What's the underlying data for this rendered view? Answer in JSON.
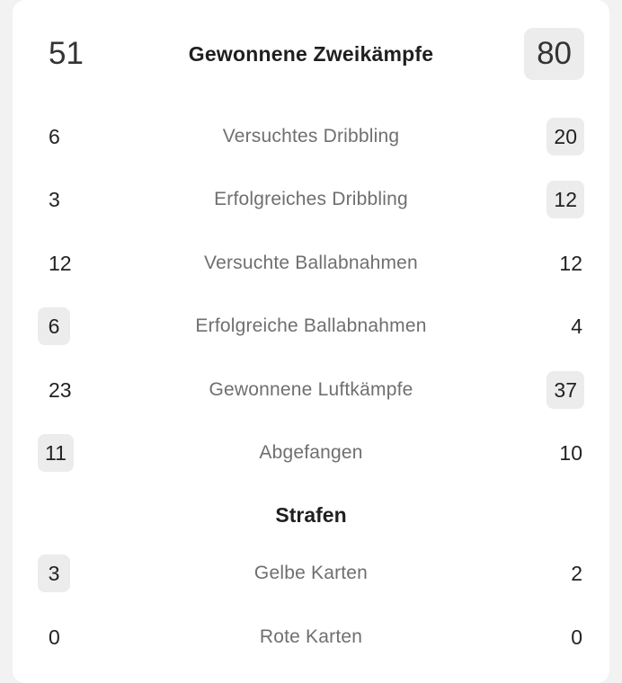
{
  "duels": {
    "header": {
      "label": "Gewonnene Zweikämpfe",
      "home": "51",
      "away": "80"
    },
    "rows": [
      {
        "label": "Versuchtes Dribbling",
        "home": "6",
        "away": "20"
      },
      {
        "label": "Erfolgreiches Dribbling",
        "home": "3",
        "away": "12"
      },
      {
        "label": "Versuchte Ballabnahmen",
        "home": "12",
        "away": "12"
      },
      {
        "label": "Erfolgreiche Ballabnahmen",
        "home": "6",
        "away": "4"
      },
      {
        "label": "Gewonnene Luftkämpfe",
        "home": "23",
        "away": "37"
      },
      {
        "label": "Abgefangen",
        "home": "11",
        "away": "10"
      }
    ]
  },
  "penalties": {
    "title": "Strafen",
    "rows": [
      {
        "label": "Gelbe Karten",
        "home": "3",
        "away": "2"
      },
      {
        "label": "Rote Karten",
        "home": "0",
        "away": "0"
      }
    ]
  }
}
